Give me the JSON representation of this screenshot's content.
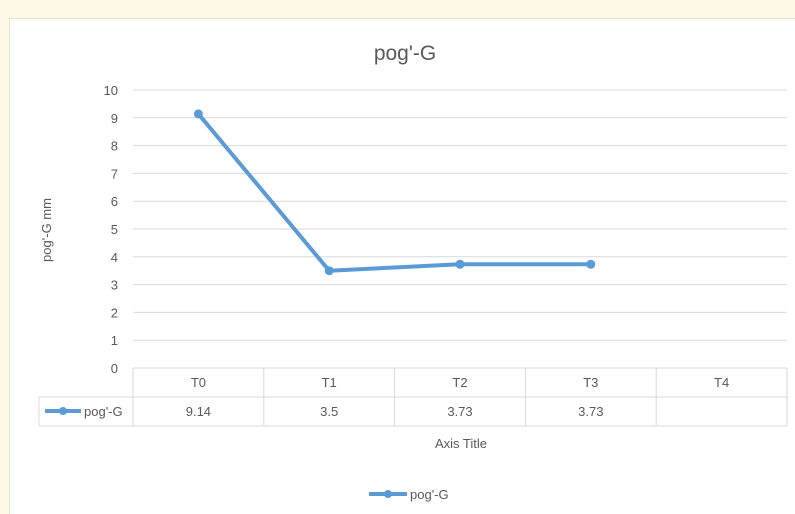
{
  "chart_data": {
    "type": "line",
    "title": "pog'-G",
    "xlabel": "Axis Title",
    "ylabel": "pog'-G mm",
    "ylim": [
      0,
      10
    ],
    "yticks": [
      "0",
      "1",
      "2",
      "3",
      "4",
      "5",
      "6",
      "7",
      "8",
      "9",
      "10"
    ],
    "categories": [
      "T0",
      "T1",
      "T2",
      "T3",
      "T4"
    ],
    "series": [
      {
        "name": "pog'-G",
        "values": [
          9.14,
          3.5,
          3.73,
          3.73,
          null
        ],
        "labels": [
          "9.14",
          "3.5",
          "3.73",
          "3.73",
          ""
        ]
      }
    ],
    "legend": "bottom",
    "data_table": true,
    "grid": true,
    "colors": {
      "series": "#5b9bd5",
      "grid": "#d9d9d9",
      "text": "#595959",
      "background": "#fdf8e8"
    }
  }
}
